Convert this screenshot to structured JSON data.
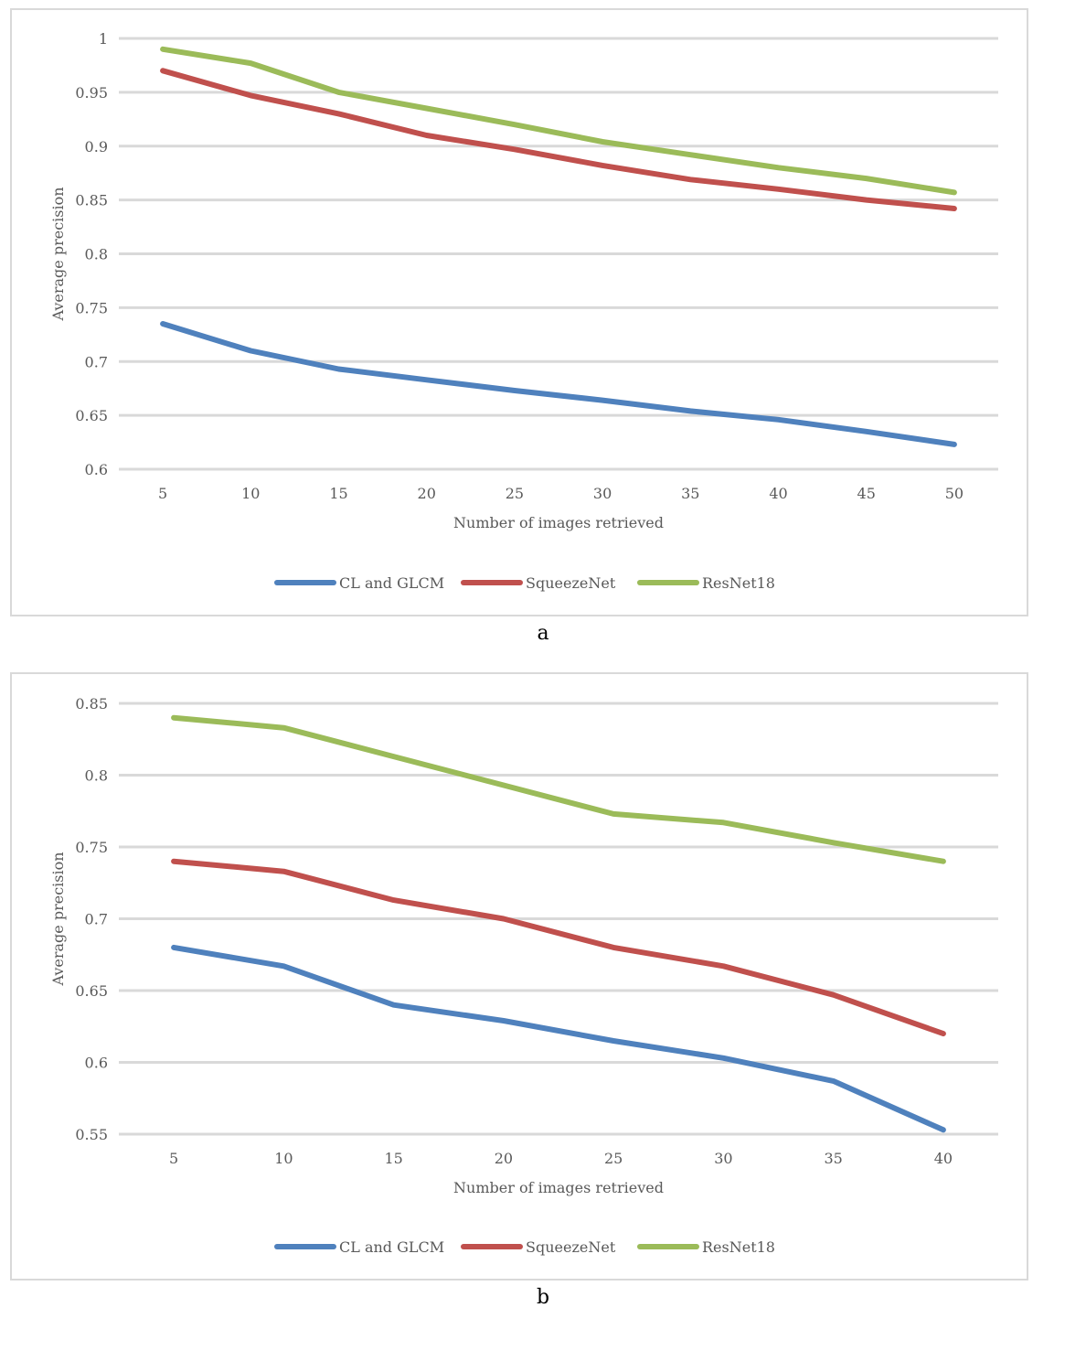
{
  "chart_data": [
    {
      "type": "line",
      "caption": "a",
      "xlabel": "Number of images retrieved",
      "ylabel": "Average precision",
      "ylim": [
        0.6,
        1
      ],
      "y_ticks": [
        "0.6",
        "0.65",
        "0.7",
        "0.75",
        "0.8",
        "0.85",
        "0.9",
        "0.95",
        "1"
      ],
      "y_tick_values": [
        0.6,
        0.65,
        0.7,
        0.75,
        0.8,
        0.85,
        0.9,
        0.95,
        1.0
      ],
      "categories": [
        "5",
        "10",
        "15",
        "20",
        "25",
        "30",
        "35",
        "40",
        "45",
        "50"
      ],
      "grid": true,
      "legend_position": "bottom",
      "series": [
        {
          "name": "CL and GLCM",
          "color": "#4f81bd",
          "values": [
            0.735,
            0.71,
            0.693,
            0.683,
            0.673,
            0.664,
            0.654,
            0.646,
            0.635,
            0.623
          ]
        },
        {
          "name": "SqueezeNet",
          "color": "#c0504d",
          "values": [
            0.97,
            0.947,
            0.93,
            0.91,
            0.897,
            0.882,
            0.869,
            0.86,
            0.85,
            0.842
          ]
        },
        {
          "name": "ResNet18",
          "color": "#9bbb59",
          "values": [
            0.99,
            0.977,
            0.95,
            0.935,
            0.92,
            0.904,
            0.892,
            0.88,
            0.87,
            0.857
          ]
        }
      ]
    },
    {
      "type": "line",
      "caption": "b",
      "xlabel": "Number of images retrieved",
      "ylabel": "Average precision",
      "ylim": [
        0.55,
        0.85
      ],
      "y_ticks": [
        "0.55",
        "0.6",
        "0.65",
        "0.7",
        "0.75",
        "0.8",
        "0.85"
      ],
      "y_tick_values": [
        0.55,
        0.6,
        0.65,
        0.7,
        0.75,
        0.8,
        0.85
      ],
      "categories": [
        "5",
        "10",
        "15",
        "20",
        "25",
        "30",
        "35",
        "40"
      ],
      "grid": true,
      "legend_position": "bottom",
      "series": [
        {
          "name": "CL and GLCM",
          "color": "#4f81bd",
          "values": [
            0.68,
            0.667,
            0.64,
            0.629,
            0.615,
            0.603,
            0.587,
            0.553
          ]
        },
        {
          "name": "SqueezeNet",
          "color": "#c0504d",
          "values": [
            0.74,
            0.733,
            0.713,
            0.7,
            0.68,
            0.667,
            0.647,
            0.62
          ]
        },
        {
          "name": "ResNet18",
          "color": "#9bbb59",
          "values": [
            0.84,
            0.833,
            0.813,
            0.793,
            0.773,
            0.767,
            0.753,
            0.74
          ]
        }
      ]
    }
  ]
}
